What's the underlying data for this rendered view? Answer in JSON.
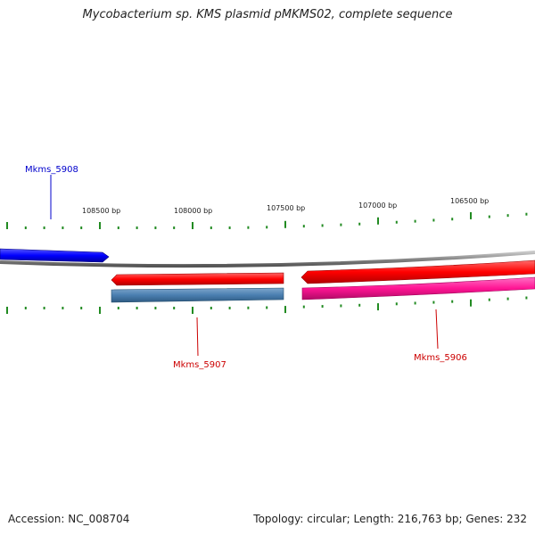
{
  "title": "Mycobacterium sp. KMS plasmid pMKMS02, complete sequence",
  "footer": {
    "accession": "Accession: NC_008704",
    "summary": "Topology: circular; Length: 216,763 bp; Genes: 232"
  },
  "ruler": {
    "labels": [
      "108500 bp",
      "108000 bp",
      "107500 bp",
      "107000 bp",
      "106500 bp"
    ]
  },
  "genes": [
    {
      "name": "Mkms_5908",
      "strand": "forward",
      "color": "#0000ff"
    },
    {
      "name": "Mkms_5907",
      "strand": "reverse",
      "color": "#ff0000"
    },
    {
      "name": "Mkms_5906",
      "strand": "reverse",
      "color": "#ff0000"
    }
  ],
  "colors": {
    "backbone": "#888888",
    "forward_gene": "#0000ff",
    "reverse_gene": "#ff0000",
    "rna_feature": "#4a7fb0",
    "misc_feature": "#ff1493",
    "tick": "#228b22"
  }
}
